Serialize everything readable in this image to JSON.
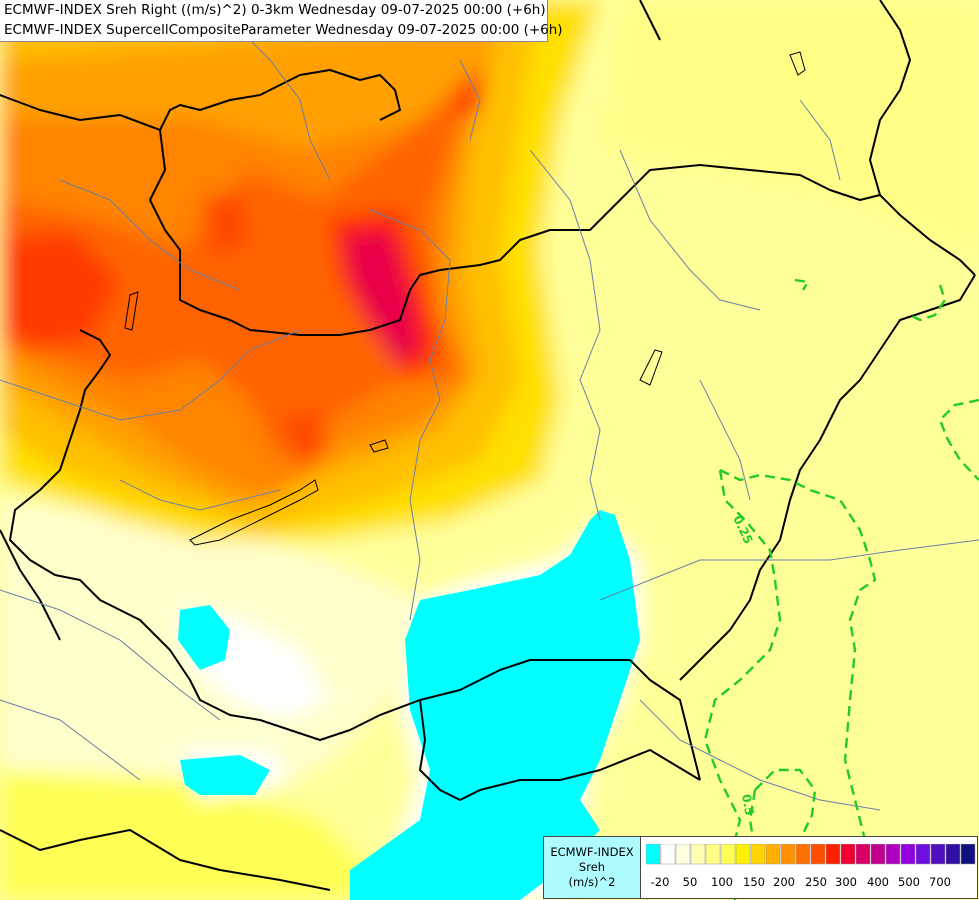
{
  "titles": [
    "ECMWF-INDEX Sreh Right ((m/s)^2) 0-3km Wednesday 09-07-2025 00:00 (+6h)",
    "ECMWF-INDEX SupercellCompositeParameter Wednesday 09-07-2025 00:00 (+6h)"
  ],
  "legend": {
    "title_lines": [
      "ECMWF-INDEX",
      "Sreh",
      "(m/s)^2"
    ],
    "colors": [
      "#00ffff",
      "#ffffff",
      "#ffffe0",
      "#ffffb4",
      "#ffff88",
      "#ffff55",
      "#fff200",
      "#ffd400",
      "#ffb000",
      "#ff9200",
      "#ff7000",
      "#ff4e00",
      "#ff2000",
      "#f00030",
      "#d80064",
      "#c0008c",
      "#b000c0",
      "#9000e0",
      "#7010e0",
      "#5010c0",
      "#3010a0",
      "#101080"
    ],
    "ticks": [
      "-20",
      "50",
      "100",
      "150",
      "200",
      "250",
      "300",
      "400",
      "500",
      "700"
    ]
  },
  "contours": {
    "color": "#22cc22",
    "labels": [
      "0.25",
      "0.5"
    ]
  }
}
